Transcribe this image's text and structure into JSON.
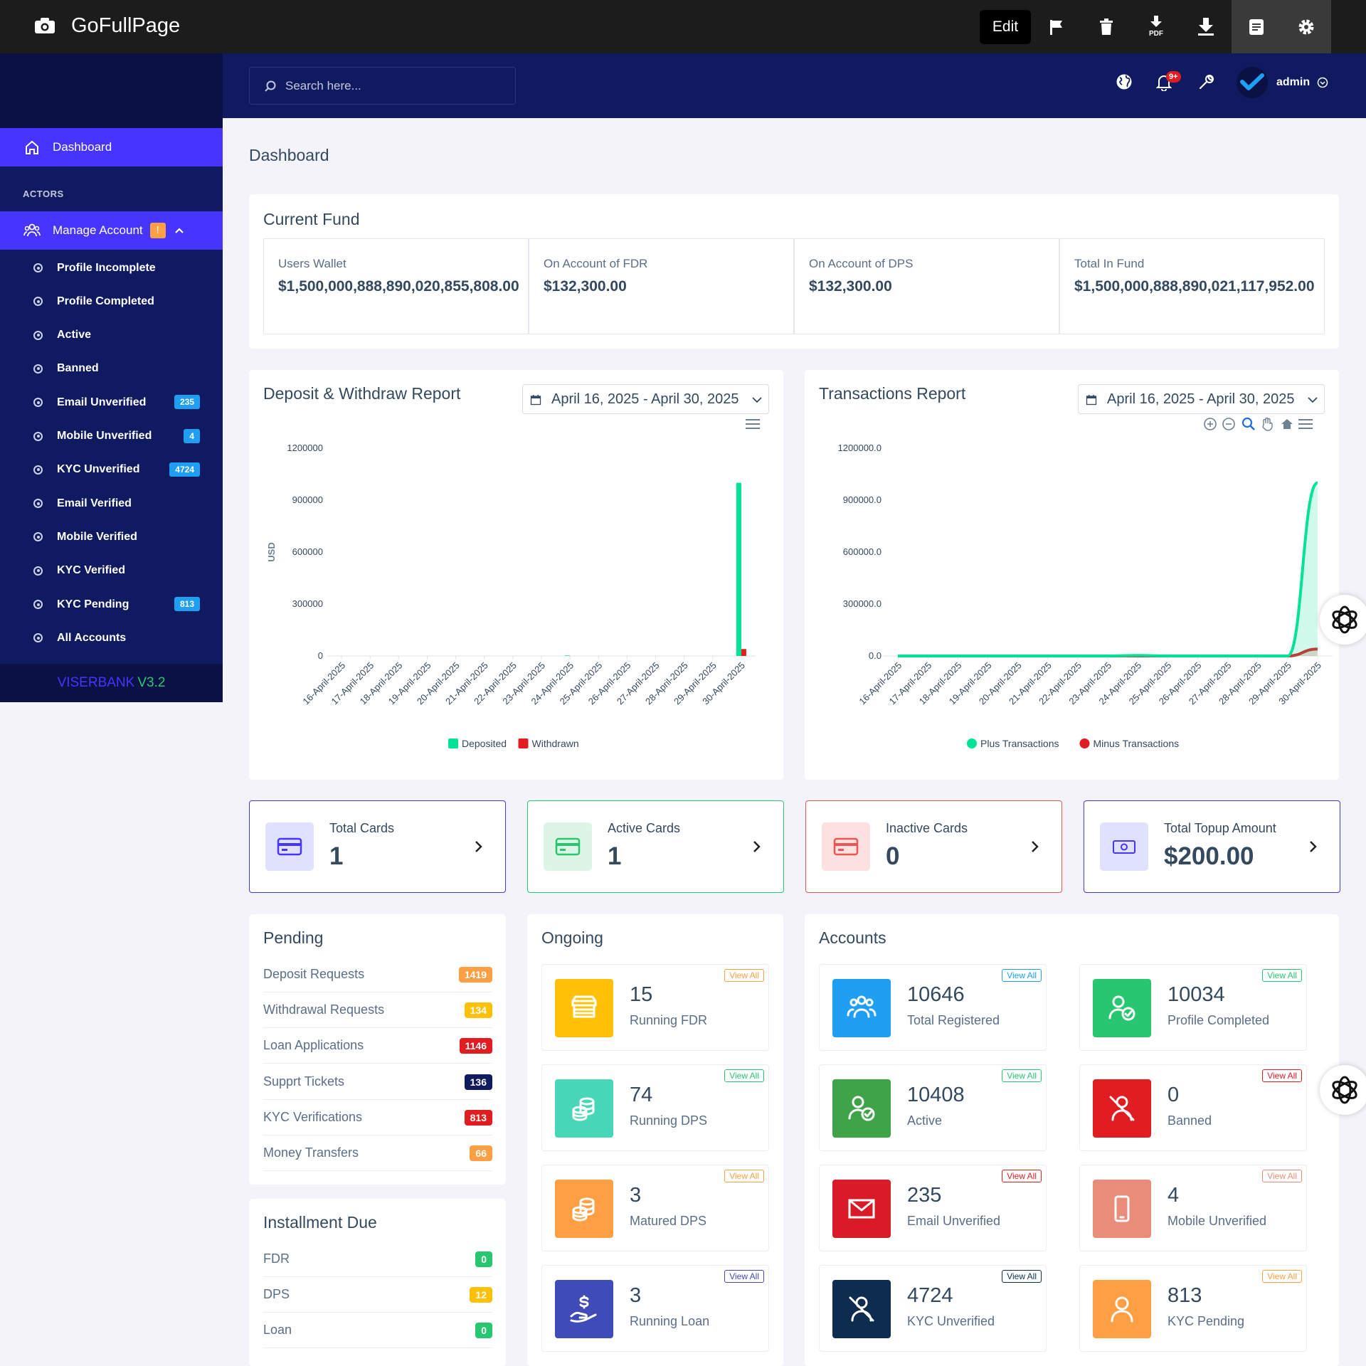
{
  "topbar": {
    "app_name": "GoFullPage",
    "edit_label": "Edit",
    "pdf_label": "PDF"
  },
  "sidebar": {
    "dashboard_label": "Dashboard",
    "section_label": "ACTORS",
    "manage_label": "Manage Account",
    "manage_alert": "!",
    "items": [
      {
        "label": "Profile Incomplete",
        "badge": ""
      },
      {
        "label": "Profile Completed",
        "badge": ""
      },
      {
        "label": "Active",
        "badge": ""
      },
      {
        "label": "Banned",
        "badge": ""
      },
      {
        "label": "Email Unverified",
        "badge": "235"
      },
      {
        "label": "Mobile Unverified",
        "badge": "4"
      },
      {
        "label": "KYC Unverified",
        "badge": "4724"
      },
      {
        "label": "Email Verified",
        "badge": ""
      },
      {
        "label": "Mobile Verified",
        "badge": ""
      },
      {
        "label": "KYC Verified",
        "badge": ""
      },
      {
        "label": "KYC Pending",
        "badge": "813"
      },
      {
        "label": "All Accounts",
        "badge": ""
      }
    ],
    "version_name": "VISERBANK",
    "version_num": "V3.2"
  },
  "header": {
    "search_placeholder": "Search here...",
    "notif_badge": "9+",
    "user": "admin"
  },
  "page_title": "Dashboard",
  "fund": {
    "title": "Current Fund",
    "cells": [
      {
        "label": "Users Wallet",
        "value": "$1,500,000,888,890,020,855,808.00"
      },
      {
        "label": "On Account of FDR",
        "value": "$132,300.00"
      },
      {
        "label": "On Account of DPS",
        "value": "$132,300.00"
      },
      {
        "label": "Total In Fund",
        "value": "$1,500,000,888,890,021,117,952.00"
      }
    ]
  },
  "deposit_report": {
    "title": "Deposit & Withdraw Report",
    "date_range": "April 16, 2025 - April 30, 2025"
  },
  "transactions_report": {
    "title": "Transactions Report",
    "date_range": "April 16, 2025 - April 30, 2025"
  },
  "chart_data": [
    {
      "type": "bar",
      "title": "Deposit & Withdraw Report",
      "ylabel": "USD",
      "ylim": [
        0,
        1200000
      ],
      "yticks": [
        "1200000",
        "900000",
        "600000",
        "300000",
        "0"
      ],
      "categories": [
        "16-April-2025",
        "17-April-2025",
        "18-April-2025",
        "19-April-2025",
        "20-April-2025",
        "21-April-2025",
        "22-April-2025",
        "23-April-2025",
        "24-April-2025",
        "25-April-2025",
        "26-April-2025",
        "27-April-2025",
        "28-April-2025",
        "29-April-2025",
        "30-April-2025"
      ],
      "series": [
        {
          "name": "Deposited",
          "color": "#00e396",
          "values": [
            0,
            0,
            0,
            0,
            0,
            0,
            0,
            0,
            3000,
            0,
            0,
            0,
            0,
            0,
            1000000
          ]
        },
        {
          "name": "Withdrawn",
          "color": "#e11d22",
          "values": [
            0,
            0,
            0,
            0,
            0,
            0,
            0,
            0,
            0,
            0,
            0,
            0,
            0,
            0,
            40000
          ]
        }
      ],
      "legend": "bottom"
    },
    {
      "type": "area",
      "title": "Transactions Report",
      "ylim": [
        0,
        1200000
      ],
      "yticks": [
        "1200000.0",
        "900000.0",
        "600000.0",
        "300000.0",
        "0.0"
      ],
      "categories": [
        "16-April-2025",
        "17-April-2025",
        "18-April-2025",
        "19-April-2025",
        "20-April-2025",
        "21-April-2025",
        "22-April-2025",
        "23-April-2025",
        "24-April-2025",
        "25-April-2025",
        "26-April-2025",
        "27-April-2025",
        "28-April-2025",
        "29-April-2025",
        "30-April-2025"
      ],
      "series": [
        {
          "name": "Plus Transactions",
          "color": "#00e396",
          "values": [
            0,
            0,
            0,
            0,
            0,
            0,
            0,
            0,
            3000,
            0,
            0,
            0,
            0,
            0,
            1000000
          ]
        },
        {
          "name": "Minus Transactions",
          "color": "#e11d22",
          "values": [
            0,
            0,
            0,
            0,
            0,
            0,
            0,
            0,
            0,
            0,
            0,
            0,
            0,
            0,
            40000
          ]
        }
      ],
      "legend": "bottom"
    }
  ],
  "stats": [
    {
      "title": "Total Cards",
      "value": "1",
      "color": "#4634ff",
      "bg": "#e0e0ff"
    },
    {
      "title": "Active Cards",
      "value": "1",
      "color": "#28c76f",
      "bg": "#dcf5e6"
    },
    {
      "title": "Inactive Cards",
      "value": "0",
      "color": "#ea5455",
      "bg": "#fde0e0"
    },
    {
      "title": "Total Topup Amount",
      "value": "$200.00",
      "color": "#4634ff",
      "bg": "#e0e0ff"
    }
  ],
  "pending": {
    "title": "Pending",
    "rows": [
      {
        "label": "Deposit Requests",
        "badge": "1419",
        "color": "#ff9f43"
      },
      {
        "label": "Withdrawal Requests",
        "badge": "134",
        "color": "#ffc107"
      },
      {
        "label": "Loan Applications",
        "badge": "1146",
        "color": "#e11d22"
      },
      {
        "label": "Supprt Tickets",
        "badge": "136",
        "color": "#0f1a60"
      },
      {
        "label": "KYC Verifications",
        "badge": "813",
        "color": "#e11d22"
      },
      {
        "label": "Money Transfers",
        "badge": "66",
        "color": "#ff9f43"
      }
    ]
  },
  "installment": {
    "title": "Installment Due",
    "rows": [
      {
        "label": "FDR",
        "badge": "0",
        "color": "#28c76f"
      },
      {
        "label": "DPS",
        "badge": "12",
        "color": "#ffc107"
      },
      {
        "label": "Loan",
        "badge": "0",
        "color": "#28c76f"
      }
    ]
  },
  "ongoing": {
    "title": "Ongoing",
    "view_all": "View All",
    "items": [
      {
        "num": "15",
        "label": "Running FDR",
        "color": "#ffc107",
        "va_color": "#ff9f43"
      },
      {
        "num": "74",
        "label": "Running DPS",
        "color": "#48d6b8",
        "va_color": "#28c76f"
      },
      {
        "num": "3",
        "label": "Matured DPS",
        "color": "#ff9f43",
        "va_color": "#ff9f43"
      },
      {
        "num": "3",
        "label": "Running Loan",
        "color": "#3f4bb8",
        "va_color": "#3f4bb8"
      }
    ]
  },
  "accounts": {
    "title": "Accounts",
    "view_all": "View All",
    "items": [
      {
        "num": "10646",
        "label": "Total Registered",
        "color": "#1e9ff2",
        "va_color": "#1e9ff2"
      },
      {
        "num": "10034",
        "label": "Profile Completed",
        "color": "#28c76f",
        "va_color": "#28c76f"
      },
      {
        "num": "10408",
        "label": "Active",
        "color": "#3fa447",
        "va_color": "#28c76f"
      },
      {
        "num": "0",
        "label": "Banned",
        "color": "#e11d22",
        "va_color": "#e11d22"
      },
      {
        "num": "235",
        "label": "Email Unverified",
        "color": "#d81b27",
        "va_color": "#e11d22"
      },
      {
        "num": "4",
        "label": "Mobile Unverified",
        "color": "#ea8c7a",
        "va_color": "#ea8c7a"
      },
      {
        "num": "4724",
        "label": "KYC Unverified",
        "color": "#0d2c4f",
        "va_color": "#0d2c4f"
      },
      {
        "num": "813",
        "label": "KYC Pending",
        "color": "#ff9f43",
        "va_color": "#ff9f43"
      }
    ]
  }
}
